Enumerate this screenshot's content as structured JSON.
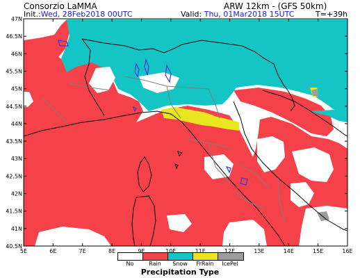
{
  "header": {
    "org": "Consorzio LaMMA",
    "model": "ARW 12km - (GFS 50km)",
    "init_label": "Init.:",
    "init_value": "Wed, 28Feb2018 00UTC",
    "valid_label": "Valid:",
    "valid_value": "Thu, 01Mar2018 15UTC",
    "lead": "T=+39h"
  },
  "map": {
    "lat_labels": [
      "47N",
      "46.5N",
      "46N",
      "45.5N",
      "45N",
      "44.5N",
      "44N",
      "43.5N",
      "43N",
      "42.5N",
      "42N",
      "41.5N",
      "41N",
      "40.5N"
    ],
    "lon_labels": [
      "5E",
      "6E",
      "7E",
      "8E",
      "9E",
      "10E",
      "11E",
      "12E",
      "13E",
      "14E",
      "15E",
      "16E"
    ],
    "colors": {
      "no": "#ffffff",
      "rain": "#f5414a",
      "snow": "#15c5c5",
      "frrain": "#e8e61e",
      "icepel": "#9c9c9c",
      "coast": "#000000",
      "border": "#7f7f7f",
      "lakes": "#3a3ad8"
    }
  },
  "legend": {
    "title": "Precipitation Type",
    "items": [
      {
        "label": "No",
        "color": "#ffffff"
      },
      {
        "label": "Rain",
        "color": "#f5414a"
      },
      {
        "label": "Snow",
        "color": "#15c5c5"
      },
      {
        "label": "FrRain",
        "color": "#e8e61e"
      },
      {
        "label": "IcePel",
        "color": "#9c9c9c"
      }
    ]
  }
}
